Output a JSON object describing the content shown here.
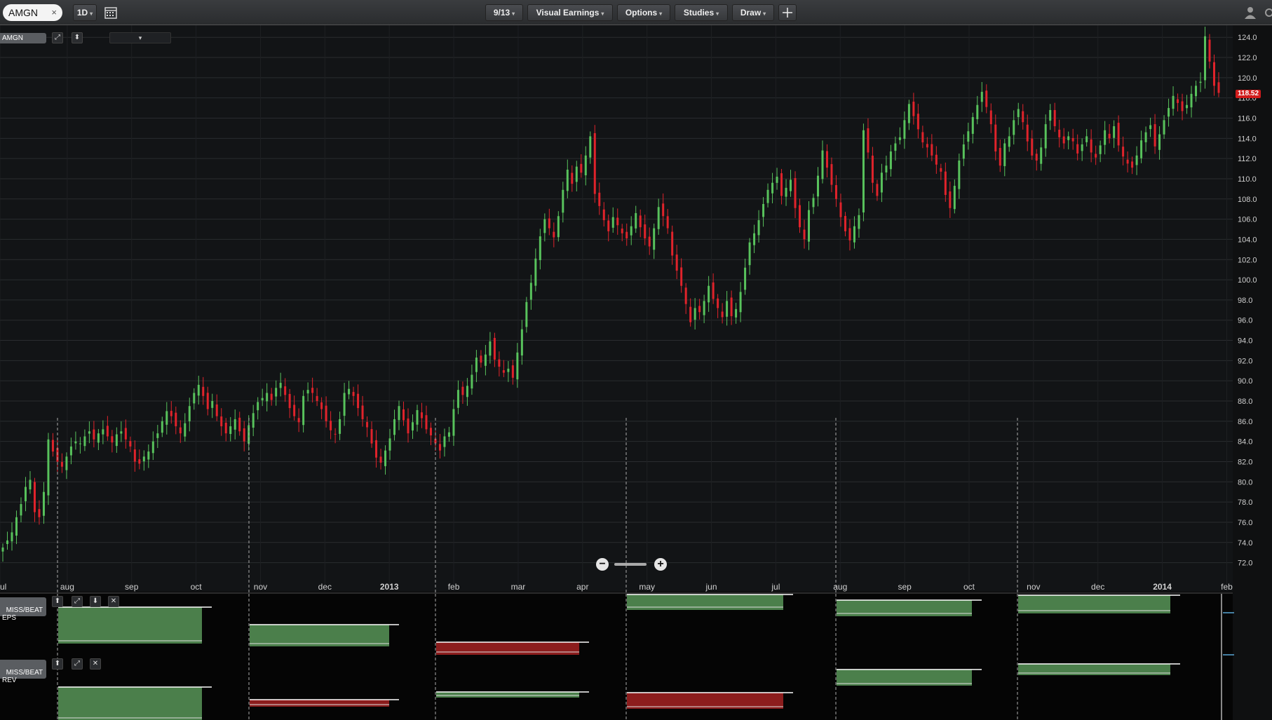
{
  "toolbar": {
    "symbol": "AMGN",
    "symbol_close": "×",
    "interval": "1D",
    "date_button": "9/13",
    "visual_earnings": "Visual Earnings",
    "options": "Options",
    "studies": "Studies",
    "draw": "Draw",
    "caret": "▾"
  },
  "main_panel": {
    "symbol_tag": "AMGN",
    "dropdown": "▾",
    "last_price": "118.52"
  },
  "colors": {
    "up": "#58c25c",
    "down": "#e0232b",
    "grid": "#2a2c2f",
    "beat": "#4b7f4b",
    "miss": "#8c1d1d",
    "price_tag": "#d21c1c"
  },
  "chart_data": {
    "type": "candlestick",
    "ylim": [
      71,
      124.5
    ],
    "y_ticks": [
      "124.0",
      "122.0",
      "120.0",
      "118.0",
      "116.0",
      "114.0",
      "112.0",
      "110.0",
      "108.0",
      "106.0",
      "104.0",
      "102.0",
      "100.0",
      "98.0",
      "96.0",
      "94.0",
      "92.0",
      "90.0",
      "88.0",
      "86.0",
      "84.0",
      "82.0",
      "80.0",
      "78.0",
      "76.0",
      "74.0",
      "72.0"
    ],
    "x_labels": [
      "ul",
      "aug",
      "sep",
      "oct",
      "nov",
      "dec",
      "2013",
      "feb",
      "mar",
      "apr",
      "may",
      "jun",
      "jul",
      "aug",
      "sep",
      "oct",
      "nov",
      "dec",
      "2014",
      "feb"
    ],
    "close_path": [
      {
        "label": "ul",
        "values": [
          73.5,
          74.2,
          75.0,
          76.5,
          77.8,
          79.5,
          80.2,
          77.0,
          76.5,
          79.0
        ]
      },
      {
        "label": "aug",
        "values": [
          84.2,
          83.0,
          82.0,
          81.5,
          82.5,
          83.5,
          84.0,
          83.8,
          84.5,
          85.0,
          84.2,
          84.8,
          85.2,
          84.5,
          83.9,
          84.7,
          85.0,
          84.2
        ]
      },
      {
        "label": "sep",
        "values": [
          83.5,
          82.0,
          81.8,
          82.5,
          83.0,
          84.0,
          84.8,
          86.0,
          87.0,
          86.5,
          85.5,
          84.8,
          85.8,
          87.5,
          88.8,
          89.6,
          88.5,
          87.2,
          88.0,
          86.5
        ]
      },
      {
        "label": "oct",
        "values": [
          85.5,
          84.8,
          85.5,
          86.2,
          85.0,
          84.0,
          85.6,
          86.8,
          87.9,
          88.3,
          88.8,
          88.1,
          89.3,
          89.8,
          88.6,
          87.3,
          86.5,
          85.9
        ]
      },
      {
        "label": "nov",
        "values": [
          88.5,
          89.1,
          88.8,
          88.0,
          87.2,
          86.0,
          85.1,
          84.7,
          86.2,
          88.8,
          89.2,
          88.5,
          87.3,
          86.2,
          85.4,
          83.8,
          82.4,
          81.9,
          83.1,
          84.3
        ]
      },
      {
        "label": "dec",
        "values": [
          86.2,
          87.5,
          86.1,
          84.8,
          85.9,
          87.1,
          86.3,
          85.2,
          84.6,
          83.8,
          83.1,
          84.5,
          84.9,
          87.2,
          89.1,
          88.6,
          89.5,
          90.6,
          92.3,
          91.8
        ]
      },
      {
        "label": "2013",
        "values": [
          92.6,
          93.9,
          92.1,
          91.4,
          90.8,
          91.2,
          90.3,
          92.8,
          95.1,
          97.8,
          99.7,
          102.1,
          104.3,
          106.0,
          105.1,
          104.2,
          106.3,
          108.9
        ]
      },
      {
        "label": "feb",
        "values": [
          110.9,
          109.5,
          111.2,
          110.6,
          112.3,
          114.2,
          108.5,
          107.3,
          105.9,
          104.8,
          106.2,
          105.4,
          104.6,
          104.1,
          105.3,
          106.6,
          105.2
        ]
      },
      {
        "label": "mar",
        "values": [
          104.1,
          103.3,
          105.1,
          107.2,
          106.3,
          105.1,
          102.4,
          100.9,
          99.4,
          97.6,
          95.8,
          97.2,
          96.8,
          97.9,
          99.4,
          98.1,
          97.2,
          96.3,
          97.9,
          96.4,
          97.1,
          98.8,
          101.2,
          103.7,
          104.6
        ]
      },
      {
        "label": "apr",
        "values": [
          105.9,
          107.5,
          108.9,
          109.6,
          110.2,
          108.3,
          109.1,
          109.9,
          107.1,
          105.2,
          104.0,
          106.9,
          108.1,
          110.3,
          112.8,
          111.1,
          109.4,
          108.0,
          106.2,
          104.8,
          103.9,
          105.3,
          106.4
        ]
      },
      {
        "label": "may",
        "values": [
          114.8,
          112.6,
          109.6,
          108.3,
          110.6,
          111.3,
          112.7,
          113.5,
          114.1,
          115.8,
          117.4,
          116.2,
          114.9,
          113.6,
          113.1,
          112.3,
          111.4,
          110.7,
          108.4,
          107.1,
          109.3,
          111.8
        ]
      },
      {
        "label": "jun",
        "values": [
          113.4,
          114.7,
          116.1,
          117.3,
          118.6,
          117.1,
          115.4,
          112.7,
          111.3,
          113.5,
          114.2,
          115.8,
          116.9,
          115.6,
          113.7,
          112.3,
          111.8,
          113.1,
          115.4,
          116.8,
          115.2
        ]
      },
      {
        "label": "jul",
        "values": [
          114.1,
          113.5,
          114.2,
          113.7,
          112.5,
          113.4,
          114.2,
          112.6,
          112.1,
          113.3,
          114.8,
          114.0,
          115.2,
          113.3,
          112.2,
          111.5,
          111.1,
          112.3,
          113.8,
          114.6,
          115.3,
          113.2,
          114.4
        ]
      },
      {
        "label": "aug",
        "values": [
          115.8,
          117.0,
          118.2,
          117.5,
          116.7,
          117.3,
          118.4,
          119.2,
          119.6,
          124.1,
          121.6,
          119.2,
          118.5
        ]
      }
    ]
  },
  "earnings": {
    "eps_tag": "MISS/BEAT\nEPS",
    "rev_tag": "MISS/BEAT\nREV",
    "eps_bars": [
      {
        "quarter": "aug 2012",
        "result": "beat"
      },
      {
        "quarter": "nov 2012",
        "result": "beat"
      },
      {
        "quarter": "jan 2013",
        "result": "miss"
      },
      {
        "quarter": "apr 2013",
        "result": "beat"
      },
      {
        "quarter": "jul 2013",
        "result": "beat"
      },
      {
        "quarter": "oct 2013",
        "result": "beat"
      }
    ],
    "rev_bars": [
      {
        "quarter": "aug 2012",
        "result": "beat"
      },
      {
        "quarter": "nov 2012",
        "result": "miss"
      },
      {
        "quarter": "jan 2013",
        "result": "beat"
      },
      {
        "quarter": "apr 2013",
        "result": "miss"
      },
      {
        "quarter": "jul 2013",
        "result": "beat"
      },
      {
        "quarter": "oct 2013",
        "result": "beat"
      }
    ]
  },
  "zoom": {
    "minus": "−",
    "plus": "+"
  }
}
